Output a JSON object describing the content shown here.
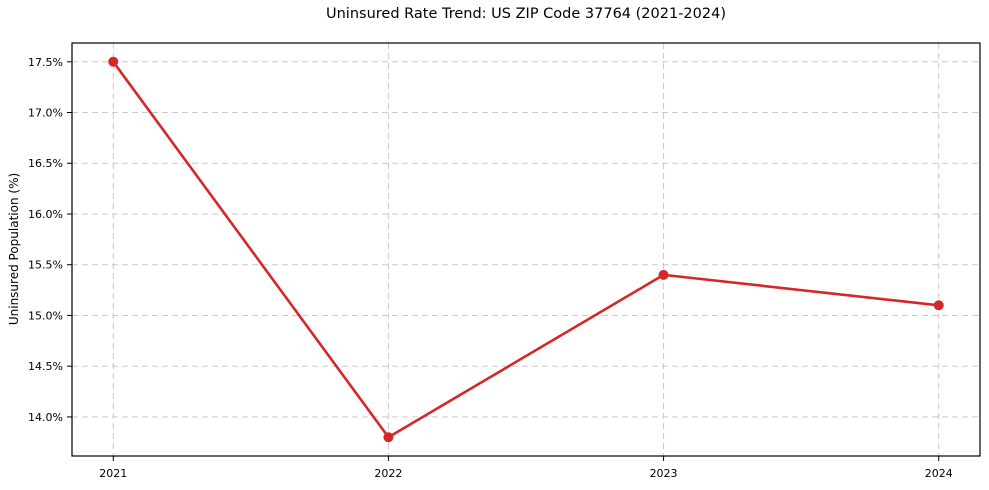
{
  "chart_data": {
    "type": "line",
    "title": "Uninsured Rate Trend: US ZIP Code 37764 (2021-2024)",
    "xlabel": "",
    "ylabel": "Uninsured Population (%)",
    "x": [
      2021,
      2022,
      2023,
      2024
    ],
    "values": [
      17.5,
      13.8,
      15.4,
      15.1
    ],
    "x_tick_labels": [
      "2021",
      "2022",
      "2023",
      "2024"
    ],
    "y_ticks": [
      14.0,
      14.5,
      15.0,
      15.5,
      16.0,
      16.5,
      17.0,
      17.5
    ],
    "y_tick_labels": [
      "14.0%",
      "14.5%",
      "15.0%",
      "15.5%",
      "16.0%",
      "16.5%",
      "17.0%",
      "17.5%"
    ],
    "xlim": [
      2020.85,
      2024.15
    ],
    "ylim": [
      13.615,
      17.685
    ],
    "grid": true,
    "grid_style": "dashed",
    "legend_position": "none",
    "marker": "circle",
    "line_color": "#d62728",
    "grid_color": "#c9c9c9",
    "axis_color": "#000000",
    "background": "#ffffff"
  }
}
